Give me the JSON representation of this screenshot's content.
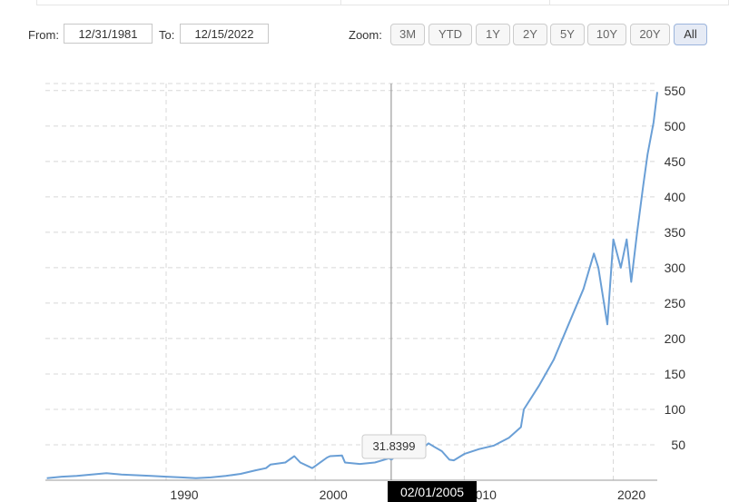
{
  "range": {
    "from_label": "From:",
    "from_value": "12/31/1981",
    "to_label": "To:",
    "to_value": "12/15/2022",
    "zoom_label": "Zoom:",
    "zoom_buttons": [
      "3M",
      "YTD",
      "1Y",
      "2Y",
      "5Y",
      "10Y",
      "20Y",
      "All"
    ],
    "active_zoom": "All"
  },
  "tooltip": {
    "value": "31.8399",
    "date": "02/01/2005"
  },
  "colors": {
    "line": "#6a9fd6",
    "grid": "#d8d8d8",
    "crosshair": "#888888",
    "active_zoom": "#e6ebf5"
  },
  "chart_data": {
    "type": "line",
    "x_tick_labels": [
      "1990",
      "2000",
      "2010",
      "2020"
    ],
    "y_tick_labels": [
      "50",
      "100",
      "150",
      "200",
      "250",
      "300",
      "350",
      "400",
      "450",
      "500",
      "550"
    ],
    "xlim": [
      1981.9,
      2022.95
    ],
    "ylim": [
      0,
      560
    ],
    "grid": true,
    "series": [
      {
        "x": [
          1982,
          1983,
          1984,
          1985,
          1986,
          1987,
          1988,
          1989,
          1990,
          1991,
          1992,
          1993,
          1994,
          1995,
          1996,
          1996.7,
          1997,
          1998,
          1998.6,
          1999,
          1999.8,
          2000,
          2000.8,
          2001,
          2001.8,
          2002,
          2003,
          2004,
          2005.1,
          2006,
          2007,
          2007.6,
          2008,
          2008.5,
          2009.0,
          2009.3,
          2010,
          2011,
          2012,
          2013,
          2013.8,
          2014,
          2015,
          2016,
          2017,
          2018,
          2018.7,
          2019,
          2019.6,
          2020,
          2020.5,
          2020.9,
          2021.2,
          2021.6,
          2022.0,
          2022.3,
          2022.7,
          2022.95
        ],
        "y": [
          3,
          5,
          6,
          8,
          10,
          8,
          7,
          6,
          5,
          4,
          3,
          4,
          6,
          9,
          14,
          17,
          22,
          25,
          34,
          25,
          17,
          20,
          32,
          34,
          35,
          25,
          23,
          25,
          31.8,
          34,
          41,
          52,
          47,
          41,
          29,
          28,
          37,
          44,
          49,
          60,
          75,
          100,
          133,
          170,
          220,
          270,
          320,
          300,
          220,
          340,
          300,
          340,
          280,
          350,
          415,
          460,
          505,
          548
        ]
      }
    ]
  }
}
